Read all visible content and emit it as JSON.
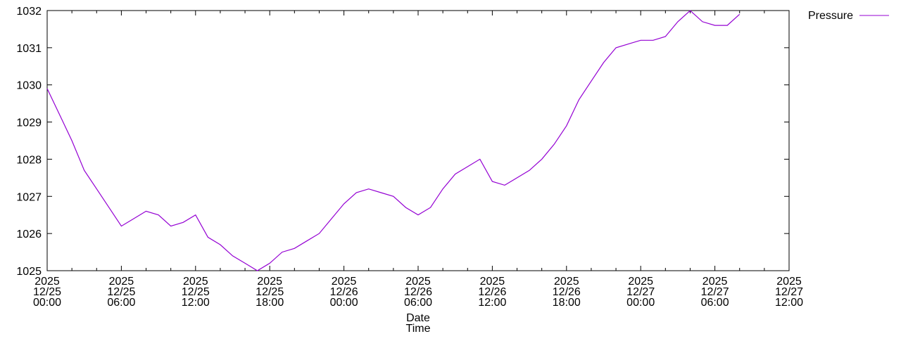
{
  "chart_data": {
    "type": "line",
    "title": "",
    "xlabel": [
      "Date",
      "Time"
    ],
    "ylabel": "",
    "xlim": [
      "2025-12-25 00:00",
      "2025-12-27 12:00"
    ],
    "ylim": [
      1025,
      1032
    ],
    "grid": false,
    "legend": "top-right",
    "line_color": "#9400d3",
    "y_ticks": [
      "1025",
      "1026",
      "1027",
      "1028",
      "1029",
      "1030",
      "1031",
      "1032"
    ],
    "x_ticks": [
      [
        "2025",
        "12/25",
        "00:00"
      ],
      [
        "2025",
        "12/25",
        "06:00"
      ],
      [
        "2025",
        "12/25",
        "12:00"
      ],
      [
        "2025",
        "12/25",
        "18:00"
      ],
      [
        "2025",
        "12/26",
        "00:00"
      ],
      [
        "2025",
        "12/26",
        "06:00"
      ],
      [
        "2025",
        "12/26",
        "12:00"
      ],
      [
        "2025",
        "12/26",
        "18:00"
      ],
      [
        "2025",
        "12/27",
        "00:00"
      ],
      [
        "2025",
        "12/27",
        "06:00"
      ],
      [
        "2025",
        "12/27",
        "12:00"
      ]
    ],
    "series": [
      {
        "name": "Pressure",
        "start": "2025-12-25 00:00",
        "interval_hours": 1,
        "values": [
          1029.9,
          1029.2,
          1028.5,
          1027.7,
          1027.2,
          1026.7,
          1026.2,
          1026.4,
          1026.6,
          1026.5,
          1026.2,
          1026.3,
          1026.5,
          1025.9,
          1025.7,
          1025.4,
          1025.2,
          1025.0,
          1025.2,
          1025.5,
          1025.6,
          1025.8,
          1026.0,
          1026.4,
          1026.8,
          1027.1,
          1027.2,
          1027.1,
          1027.0,
          1026.7,
          1026.5,
          1026.7,
          1027.2,
          1027.6,
          1027.8,
          1028.0,
          1027.4,
          1027.3,
          1027.5,
          1027.7,
          1028.0,
          1028.4,
          1028.9,
          1029.6,
          1030.1,
          1030.6,
          1031.0,
          1031.1,
          1031.2,
          1031.2,
          1031.3,
          1031.7,
          1032.0,
          1031.7,
          1031.6,
          1031.6,
          1031.9
        ]
      }
    ]
  }
}
